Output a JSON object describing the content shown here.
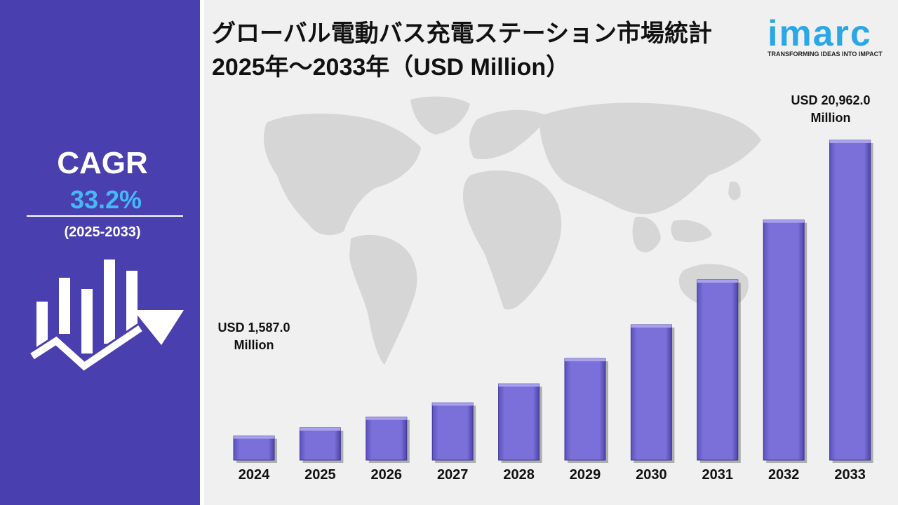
{
  "title": "グローバル電動バス充電ステーション市場統計 2025年～2033年（USD Million）",
  "logo": {
    "name": "imarc",
    "tagline": "TRANSFORMING IDEAS INTO IMPACT"
  },
  "cagr": {
    "label": "CAGR",
    "value": "33.2%",
    "period": "(2025-2033)"
  },
  "callouts": {
    "first": "USD 1,587.0 Million",
    "last": "USD 20,962.0 Million"
  },
  "colors": {
    "panel": "#4a3fae",
    "accent": "#45b8f5",
    "bar": "#7b70d9",
    "bar_dark": "#5c52bd",
    "map": "#d6d6d6",
    "logo": "#2aa7e6"
  },
  "icons": {
    "growth": "bar-chart-with-rising-arrow-icon"
  },
  "chart_data": {
    "type": "bar",
    "title": "グローバル電動バス充電ステーション市場統計 2025年～2033年（USD Million）",
    "categories": [
      "2024",
      "2025",
      "2026",
      "2027",
      "2028",
      "2029",
      "2030",
      "2031",
      "2032",
      "2033"
    ],
    "values": [
      1587.0,
      2115.0,
      2818.0,
      3753.0,
      5000.0,
      6660.0,
      8870.0,
      11815.0,
      15740.0,
      20962.0
    ],
    "labeled_values": {
      "2024": "USD 1,587.0 Million",
      "2033": "USD 20,962.0 Million"
    },
    "xlabel": "",
    "ylabel": "",
    "ylim": [
      0,
      20962.0
    ],
    "grid": false,
    "legend": "none"
  }
}
